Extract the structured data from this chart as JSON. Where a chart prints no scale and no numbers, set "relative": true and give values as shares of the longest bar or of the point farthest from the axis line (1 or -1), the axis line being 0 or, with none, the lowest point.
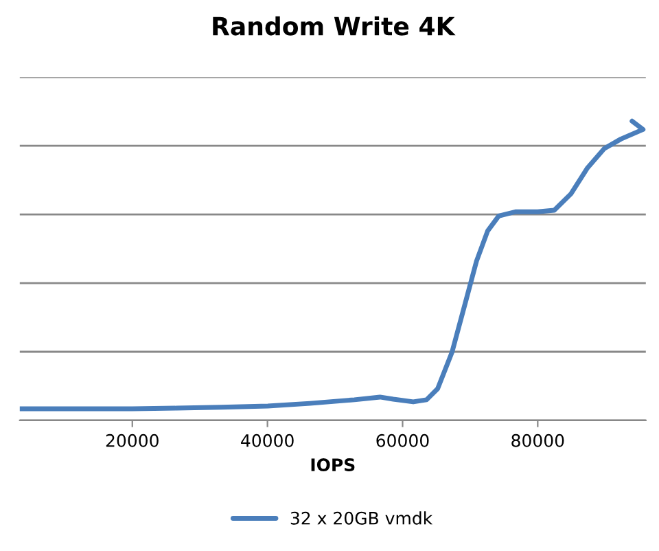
{
  "chart_data": {
    "type": "line",
    "title": "Random Write 4K",
    "xlabel": "IOPS",
    "relative": true,
    "xlim": [
      3340,
      96000
    ],
    "xticks": [
      20000,
      40000,
      60000,
      80000
    ],
    "grid": "y",
    "legend": "bottom",
    "marker": "none",
    "line_style": "solid",
    "series": [
      {
        "name": "32 x 20GB vmdk",
        "color": "#4a7ebb",
        "x": [
          3340,
          20000,
          26570,
          33150,
          40050,
          46290,
          52870,
          56650,
          58620,
          61580,
          63550,
          65190,
          67330,
          69300,
          70940,
          72590,
          74230,
          76700,
          79990,
          82450,
          84920,
          87380,
          89850,
          92310,
          95600,
          93960
        ],
        "values": [
          0.039,
          0.039,
          0.041,
          0.044,
          0.048,
          0.057,
          0.069,
          0.078,
          0.071,
          0.062,
          0.069,
          0.106,
          0.229,
          0.394,
          0.532,
          0.633,
          0.683,
          0.697,
          0.697,
          0.702,
          0.757,
          0.844,
          0.908,
          0.94,
          0.972,
          1.0
        ]
      }
    ]
  }
}
